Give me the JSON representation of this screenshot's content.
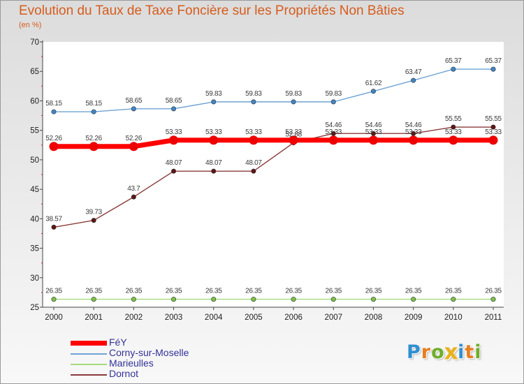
{
  "title": "Evolution du Taux de Taxe Foncière sur les Propriétés Non Bâties",
  "unit_label": "(en %)",
  "logo": {
    "text": "Proxiti",
    "letters": [
      {
        "ch": "P",
        "color": "#2f8fd1"
      },
      {
        "ch": "r",
        "color": "#e87e1e"
      },
      {
        "ch": "o",
        "color": "#6fae2a"
      },
      {
        "ch": "x",
        "color": "#e8b21e"
      },
      {
        "ch": "i",
        "color": "#2f8fd1"
      },
      {
        "ch": "t",
        "color": "#e87e1e"
      },
      {
        "ch": "i",
        "color": "#6fae2a"
      }
    ]
  },
  "chart_data": {
    "type": "line",
    "title": "Evolution du Taux de Taxe Foncière sur les Propriétés Non Bâties",
    "ylabel": "(en %)",
    "xlabel": "",
    "categories": [
      "2000",
      "2001",
      "2002",
      "2003",
      "2004",
      "2005",
      "2006",
      "2007",
      "2008",
      "2009",
      "2010",
      "2011"
    ],
    "ylim": [
      25,
      70
    ],
    "yticks": [
      25,
      30,
      35,
      40,
      45,
      50,
      55,
      60,
      65,
      70
    ],
    "grid": false,
    "legend_position": "bottom-left",
    "series": [
      {
        "name": "Corny-sur-Moselle",
        "color": "#6fa3d4",
        "marker_color": "#3f86c8",
        "values": [
          58.15,
          58.15,
          58.65,
          58.65,
          59.83,
          59.83,
          59.83,
          59.83,
          61.62,
          63.47,
          65.37,
          65.37
        ],
        "labels": [
          "58.15",
          "58.15",
          "58.65",
          "58.65",
          "59.83",
          "59.83",
          "59.83",
          "59.83",
          "61.62",
          "63.47",
          "65.37",
          "65.37"
        ]
      },
      {
        "name": "Marieulles",
        "color": "#a6dc7c",
        "marker_color": "#7cc34a",
        "values": [
          26.35,
          26.35,
          26.35,
          26.35,
          26.35,
          26.35,
          26.35,
          26.35,
          26.35,
          26.35,
          26.35,
          26.35
        ],
        "labels": [
          "26.35",
          "26.35",
          "26.35",
          "26.35",
          "26.35",
          "26.35",
          "26.35",
          "26.35",
          "26.35",
          "26.35",
          "26.35",
          "26.35"
        ]
      },
      {
        "name": "Dornot",
        "color": "#8b3b3b",
        "marker_color": "#5e1515",
        "values": [
          38.57,
          39.73,
          43.7,
          48.07,
          48.07,
          48.07,
          52.88,
          54.46,
          54.46,
          54.46,
          55.55,
          55.55
        ],
        "labels": [
          "38.57",
          "39.73",
          "43.7",
          "48.07",
          "48.07",
          "48.07",
          "52.88",
          "54.46",
          "54.46",
          "54.46",
          "55.55",
          "55.55"
        ]
      },
      {
        "name": "FéY",
        "color": "#ff0000",
        "marker_color": "#ee0000",
        "values": [
          52.26,
          52.26,
          52.26,
          53.33,
          53.33,
          53.33,
          53.33,
          53.33,
          53.33,
          53.33,
          53.33,
          53.33
        ],
        "labels": [
          "52.26",
          "52.26",
          "52.26",
          "53.33",
          "53.33",
          "53.33",
          "53.33",
          "53.33",
          "53.33",
          "53.33",
          "53.33",
          "53.33"
        ]
      }
    ],
    "legend_order": [
      "FéY",
      "Corny-sur-Moselle",
      "Marieulles",
      "Dornot"
    ]
  }
}
